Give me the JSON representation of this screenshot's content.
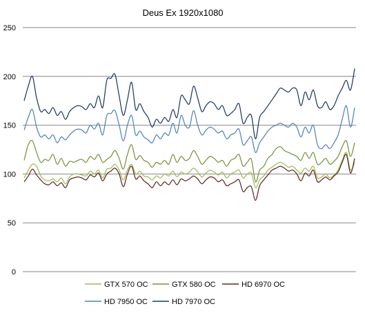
{
  "chart_data": {
    "type": "line",
    "title": "Deus Ex 1920x1080",
    "xlabel": "",
    "ylabel": "",
    "ylim": [
      0,
      250
    ],
    "yticks": [
      0,
      50,
      100,
      150,
      200,
      250
    ],
    "grid": "horizontal",
    "legend_position": "bottom",
    "x": [
      0,
      1,
      2,
      3,
      4,
      5,
      6,
      7,
      8,
      9,
      10,
      11,
      12,
      13,
      14,
      15,
      16,
      17,
      18,
      19,
      20,
      21,
      22,
      23,
      24,
      25,
      26,
      27,
      28,
      29,
      30,
      31,
      32,
      33,
      34,
      35,
      36,
      37,
      38,
      39,
      40,
      41,
      42,
      43,
      44,
      45,
      46,
      47,
      48,
      49,
      50,
      51,
      52,
      53,
      54,
      55,
      56,
      57,
      58,
      59,
      60,
      61,
      62,
      63,
      64,
      65,
      66,
      67,
      68,
      69,
      70,
      71,
      72,
      73,
      74,
      75,
      76,
      77,
      78,
      79,
      80
    ],
    "series": [
      {
        "name": "GTX 570 OC",
        "color": "#9bbb59",
        "values": [
          96,
          104,
          110,
          108,
          98,
          94,
          93,
          95,
          92,
          96,
          90,
          97,
          100,
          100,
          99,
          98,
          103,
          100,
          104,
          96,
          105,
          106,
          110,
          104,
          94,
          104,
          110,
          100,
          103,
          98,
          97,
          94,
          98,
          96,
          100,
          98,
          103,
          97,
          102,
          100,
          102,
          106,
          102,
          97,
          101,
          104,
          102,
          99,
          102,
          96,
          100,
          102,
          104,
          96,
          100,
          101,
          86,
          94,
          98,
          104,
          107,
          110,
          112,
          110,
          107,
          108,
          104,
          101,
          106,
          103,
          108,
          96,
          97,
          100,
          96,
          99,
          104,
          114,
          122,
          104,
          112
        ]
      },
      {
        "name": "GTX 580 OC",
        "color": "#76923c",
        "values": [
          114,
          130,
          134,
          122,
          112,
          115,
          114,
          120,
          110,
          116,
          108,
          113,
          112,
          114,
          115,
          112,
          118,
          115,
          120,
          112,
          115,
          118,
          124,
          116,
          105,
          120,
          130,
          115,
          119,
          114,
          112,
          107,
          112,
          110,
          114,
          110,
          120,
          112,
          118,
          114,
          116,
          124,
          118,
          110,
          114,
          118,
          116,
          112,
          114,
          108,
          114,
          116,
          120,
          108,
          112,
          115,
          92,
          104,
          108,
          116,
          120,
          126,
          128,
          124,
          122,
          120,
          118,
          114,
          122,
          116,
          122,
          110,
          112,
          116,
          110,
          113,
          118,
          128,
          134,
          118,
          132
        ]
      },
      {
        "name": "HD 6970 OC",
        "color": "#632523",
        "values": [
          92,
          98,
          105,
          99,
          94,
          90,
          89,
          92,
          88,
          91,
          86,
          94,
          96,
          97,
          96,
          94,
          99,
          97,
          101,
          93,
          100,
          103,
          106,
          100,
          87,
          100,
          108,
          95,
          98,
          93,
          90,
          86,
          92,
          88,
          92,
          89,
          94,
          89,
          95,
          93,
          95,
          98,
          95,
          90,
          94,
          97,
          96,
          92,
          94,
          88,
          90,
          92,
          94,
          82,
          86,
          87,
          73,
          88,
          94,
          99,
          104,
          106,
          108,
          106,
          103,
          104,
          100,
          93,
          101,
          98,
          104,
          92,
          94,
          97,
          94,
          98,
          102,
          112,
          120,
          101,
          116
        ]
      },
      {
        "name": "HD 7950 OC",
        "color": "#4f81bd",
        "values": [
          145,
          158,
          166,
          148,
          138,
          140,
          136,
          140,
          132,
          138,
          135,
          140,
          144,
          146,
          145,
          142,
          150,
          146,
          152,
          140,
          160,
          162,
          165,
          150,
          134,
          150,
          160,
          140,
          144,
          138,
          135,
          132,
          140,
          136,
          142,
          140,
          152,
          142,
          160,
          150,
          148,
          165,
          150,
          140,
          145,
          148,
          146,
          142,
          144,
          136,
          140,
          142,
          146,
          130,
          134,
          138,
          122,
          132,
          138,
          144,
          148,
          150,
          152,
          150,
          148,
          152,
          148,
          138,
          148,
          142,
          150,
          130,
          126,
          130,
          126,
          132,
          140,
          156,
          170,
          148,
          168
        ]
      },
      {
        "name": "HD 7970 OC",
        "color": "#1f3864",
        "values": [
          175,
          190,
          200,
          178,
          164,
          166,
          162,
          168,
          160,
          164,
          156,
          164,
          168,
          170,
          169,
          166,
          172,
          168,
          180,
          168,
          196,
          198,
          202,
          180,
          160,
          176,
          194,
          166,
          172,
          164,
          158,
          148,
          156,
          152,
          158,
          154,
          166,
          158,
          180,
          176,
          172,
          190,
          178,
          164,
          170,
          174,
          172,
          166,
          170,
          160,
          162,
          166,
          172,
          152,
          158,
          160,
          136,
          158,
          164,
          170,
          176,
          182,
          188,
          186,
          184,
          188,
          186,
          170,
          184,
          176,
          186,
          170,
          168,
          174,
          166,
          170,
          180,
          188,
          196,
          186,
          208
        ]
      }
    ]
  }
}
